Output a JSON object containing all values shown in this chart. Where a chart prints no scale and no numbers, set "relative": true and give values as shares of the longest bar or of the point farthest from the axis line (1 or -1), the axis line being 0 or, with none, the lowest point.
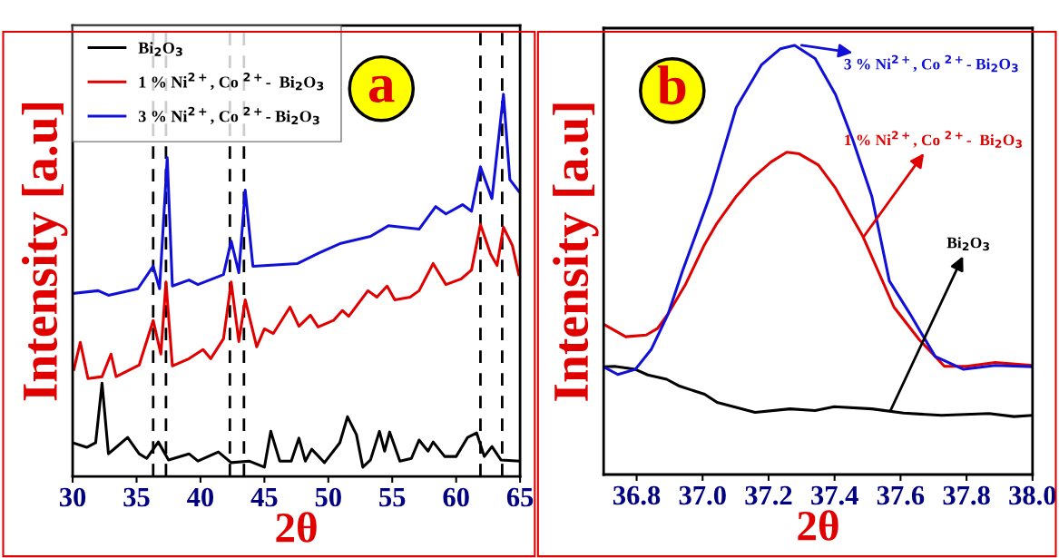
{
  "chart_data": [
    {
      "type": "line",
      "relative": true,
      "xlabel": "2θ",
      "ylabel": "Intensity [a.u]",
      "xlim": [
        30,
        65
      ],
      "xticks": [
        30,
        35,
        40,
        45,
        50,
        55,
        60,
        65
      ],
      "tick_labels": "x",
      "legend": "top left",
      "grid": false,
      "marker": "none",
      "line_style": "solid",
      "annotations": [
        "a"
      ],
      "ref_lines": [
        {
          "axis": "x",
          "value": 36.3,
          "color": "#000000",
          "line_style": "dashed"
        },
        {
          "axis": "x",
          "value": 37.3,
          "color": "#000000",
          "line_style": "dashed"
        },
        {
          "axis": "x",
          "value": 42.3,
          "color": "#000000",
          "line_style": "dashed"
        },
        {
          "axis": "x",
          "value": 43.4,
          "color": "#000000",
          "line_style": "dashed"
        },
        {
          "axis": "x",
          "value": 61.9,
          "color": "#000000",
          "line_style": "dashed"
        },
        {
          "axis": "x",
          "value": 63.6,
          "color": "#000000",
          "line_style": "dashed"
        }
      ],
      "series": [
        {
          "name": "Bi$_{2}$O$_{3}$",
          "color": "#000000",
          "x": [
            30.0,
            31.1,
            31.8,
            32.3,
            32.8,
            33.4,
            34.3,
            35.2,
            35.8,
            36.7,
            37.5,
            39.1,
            39.8,
            41.4,
            42.4,
            43.8,
            45.0,
            45.5,
            46.2,
            47.1,
            47.7,
            48.2,
            48.7,
            49.7,
            50.9,
            51.5,
            52.2,
            52.7,
            53.3,
            54.0,
            54.4,
            54.8,
            55.6,
            56.5,
            57.1,
            57.8,
            58.2,
            59.1,
            60.0,
            60.9,
            61.6,
            62.2,
            62.8,
            63.5,
            64.9
          ],
          "values": [
            0.088,
            0.076,
            0.088,
            0.244,
            0.059,
            0.076,
            0.102,
            0.059,
            0.047,
            0.09,
            0.043,
            0.059,
            0.04,
            0.064,
            0.036,
            0.04,
            0.024,
            0.118,
            0.04,
            0.04,
            0.1,
            0.04,
            0.071,
            0.036,
            0.088,
            0.156,
            0.109,
            0.024,
            0.043,
            0.118,
            0.066,
            0.116,
            0.04,
            0.047,
            0.095,
            0.066,
            0.09,
            0.052,
            0.052,
            0.102,
            0.114,
            0.052,
            0.078,
            0.043,
            0.04
          ]
        },
        {
          "name": "1 % Ni$^{2+}$, Co $^{2+}$-  Bi$_{2}$O$_{3}$",
          "color": "#e00000",
          "x": [
            30.1,
            30.6,
            31.2,
            32.3,
            33.0,
            33.4,
            35.2,
            36.3,
            36.9,
            37.3,
            37.8,
            39.1,
            40.2,
            40.8,
            41.8,
            42.4,
            43.0,
            43.5,
            44.4,
            45.0,
            45.7,
            47.0,
            47.7,
            48.6,
            49.2,
            50.4,
            51.1,
            51.6,
            53.1,
            53.8,
            54.6,
            55.2,
            56.4,
            57.1,
            58.2,
            59.2,
            60.4,
            61.2,
            61.9,
            62.7,
            63.2,
            63.7,
            64.4,
            64.9
          ],
          "values": [
            0.28,
            0.351,
            0.256,
            0.261,
            0.32,
            0.261,
            0.291,
            0.408,
            0.32,
            0.509,
            0.289,
            0.308,
            0.332,
            0.308,
            0.36,
            0.509,
            0.353,
            0.462,
            0.339,
            0.386,
            0.374,
            0.443,
            0.393,
            0.422,
            0.391,
            0.408,
            0.434,
            0.419,
            0.486,
            0.469,
            0.498,
            0.462,
            0.469,
            0.486,
            0.557,
            0.502,
            0.517,
            0.54,
            0.659,
            0.581,
            0.552,
            0.652,
            0.604,
            0.528
          ]
        },
        {
          "name": "3 % Ni$^{2+}$, Co $^{2+}$- Bi$_{2}$O$_{3}$",
          "color": "#1010d8",
          "x": [
            30.1,
            32.0,
            32.8,
            35.1,
            36.3,
            36.8,
            37.4,
            37.8,
            39.1,
            39.8,
            41.8,
            42.4,
            43.0,
            43.5,
            44.1,
            47.6,
            49.3,
            50.9,
            53.3,
            54.7,
            57.1,
            58.4,
            59.2,
            60.5,
            61.2,
            61.9,
            62.8,
            63.7,
            64.2,
            64.9
          ],
          "values": [
            0.479,
            0.486,
            0.474,
            0.491,
            0.55,
            0.491,
            0.834,
            0.498,
            0.514,
            0.502,
            0.528,
            0.616,
            0.533,
            0.749,
            0.55,
            0.557,
            0.585,
            0.609,
            0.628,
            0.656,
            0.647,
            0.706,
            0.687,
            0.711,
            0.694,
            0.81,
            0.727,
            1.0,
            0.777,
            0.746
          ]
        }
      ]
    },
    {
      "type": "line",
      "relative": true,
      "xlabel": "2θ",
      "ylabel": "Intensity [a.u]",
      "xlim": [
        36.7,
        38.0
      ],
      "xticks": [
        36.8,
        {
          "value": 37.0,
          "label": "37.0"
        },
        37.2,
        37.4,
        37.6,
        37.8,
        {
          "value": 38.0,
          "label": "38.0"
        }
      ],
      "tick_labels": "x",
      "grid": false,
      "marker": "none",
      "line_style": "solid",
      "annotations": [
        "b",
        {
          "text": "Bi$_{2}$O$_{3}$",
          "x": 37.57,
          "y": 0.15
        },
        {
          "text": "1 % Ni$^{2+}$, Co $^{2+}$-  Bi$_{2}$O$_{3}$",
          "x": 37.49,
          "y": 0.556
        },
        {
          "text": "3 % Ni$^{2+}$, Co $^{2+}$- Bi$_{2}$O$_{3}$",
          "x": 37.3,
          "y": 1.0
        }
      ],
      "series": [
        {
          "color": "#000000",
          "x": [
            36.7,
            36.733,
            36.796,
            36.834,
            36.891,
            36.93,
            37.006,
            37.044,
            37.159,
            37.265,
            37.341,
            37.399,
            37.513,
            37.609,
            37.724,
            37.868,
            37.944,
            38.0
          ],
          "values": [
            0.251,
            0.252,
            0.245,
            0.232,
            0.222,
            0.206,
            0.187,
            0.168,
            0.145,
            0.153,
            0.149,
            0.158,
            0.153,
            0.143,
            0.138,
            0.142,
            0.135,
            0.138
          ]
        },
        {
          "color": "#e00000",
          "x": [
            36.7,
            36.767,
            36.829,
            36.863,
            36.896,
            36.949,
            37.006,
            37.044,
            37.102,
            37.15,
            37.207,
            37.255,
            37.293,
            37.351,
            37.403,
            37.485,
            37.58,
            37.657,
            37.733,
            37.8,
            37.887,
            38.0
          ],
          "values": [
            0.35,
            0.321,
            0.325,
            0.34,
            0.375,
            0.444,
            0.536,
            0.586,
            0.648,
            0.69,
            0.728,
            0.751,
            0.747,
            0.721,
            0.667,
            0.556,
            0.39,
            0.314,
            0.252,
            0.252,
            0.261,
            0.254
          ]
        },
        {
          "color": "#1010d8",
          "x": [
            36.7,
            36.743,
            36.796,
            36.844,
            36.896,
            36.939,
            37.025,
            37.102,
            37.178,
            37.236,
            37.279,
            37.341,
            37.403,
            37.456,
            37.513,
            37.566,
            37.628,
            37.705,
            37.791,
            37.887,
            38.0
          ],
          "values": [
            0.251,
            0.233,
            0.245,
            0.291,
            0.375,
            0.474,
            0.655,
            0.855,
            0.954,
            0.992,
            1.0,
            0.969,
            0.885,
            0.778,
            0.648,
            0.451,
            0.375,
            0.275,
            0.245,
            0.254,
            0.251
          ]
        }
      ]
    }
  ]
}
